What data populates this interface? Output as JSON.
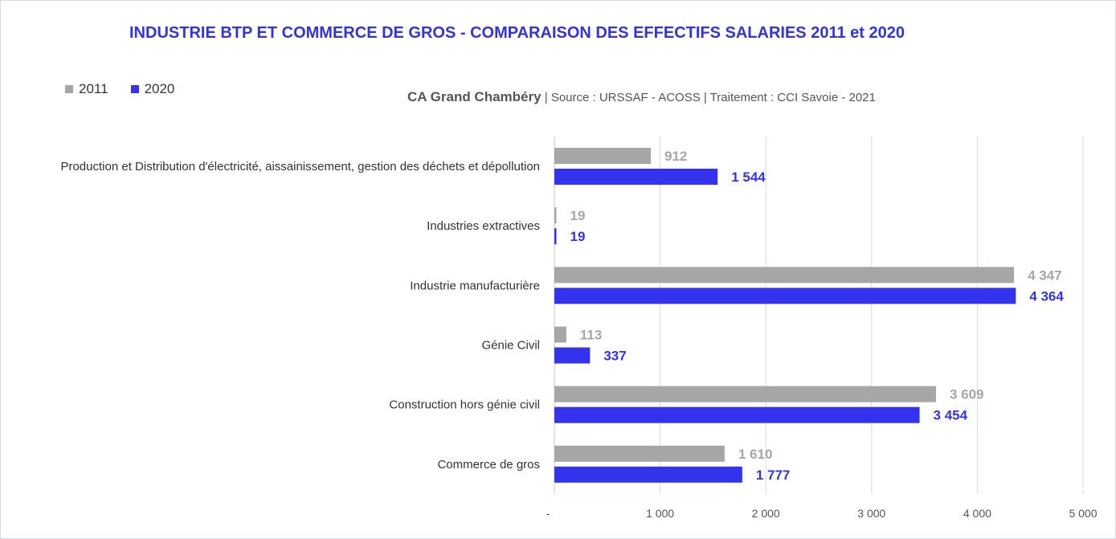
{
  "chart_data": {
    "type": "bar",
    "orientation": "horizontal",
    "title": "INDUSTRIE BTP ET COMMERCE DE GROS - COMPARAISON DES EFFECTIFS SALARIES 2011 et 2020",
    "subtitle": {
      "territory": "CA Grand Chambéry",
      "source": "|  Source : URSSAF - ACOSS  |  Traitement  : CCI Savoie - 2021"
    },
    "categories": [
      "Production et Distribution d'électricité, aissainissement, gestion des déchets et dépollution",
      "Industries extractives",
      "Industrie manufacturière",
      "Génie Civil",
      "Construction hors génie civil",
      "Commerce de gros"
    ],
    "series": [
      {
        "name": "2011",
        "color": "#a6a6a6",
        "values": [
          912,
          19,
          4347,
          113,
          3609,
          1610
        ],
        "labels": [
          "912",
          "19",
          "4 347",
          "113",
          "3 609",
          "1 610"
        ]
      },
      {
        "name": "2020",
        "color": "#3333ee",
        "values": [
          1544,
          19,
          4364,
          337,
          3454,
          1777
        ],
        "labels": [
          "1 544",
          "19",
          "4 364",
          "337",
          "3 454",
          "1 777"
        ]
      }
    ],
    "xlim": [
      0,
      5000
    ],
    "xticks": [
      0,
      1000,
      2000,
      3000,
      4000,
      5000
    ],
    "xtick_labels": [
      "-",
      "1 000",
      "2 000",
      "3 000",
      "4 000",
      "5 000"
    ],
    "grid": "vertical",
    "legend_position": "top-left"
  }
}
